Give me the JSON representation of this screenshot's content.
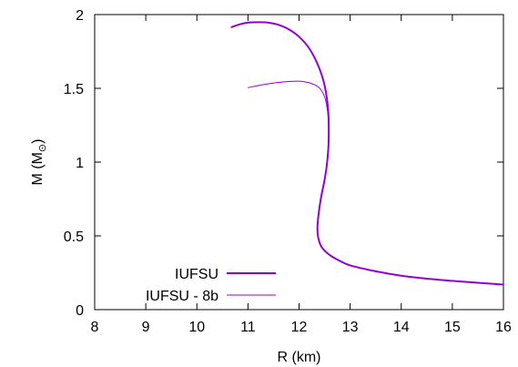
{
  "chart_data": {
    "type": "line",
    "title": "",
    "xlabel": "R (km)",
    "ylabel": "M (M",
    "ylabel_symbol": "⊙",
    "ylabel_close": ")",
    "xlim": [
      8,
      16
    ],
    "ylim": [
      0,
      2
    ],
    "xticks": [
      8,
      9,
      10,
      11,
      12,
      13,
      14,
      15,
      16
    ],
    "xtick_labels": [
      "8",
      "9",
      "10",
      "11",
      "12",
      "13",
      "14",
      "15",
      "16"
    ],
    "yticks": [
      0,
      0.5,
      1,
      1.5,
      2
    ],
    "ytick_labels": [
      "0",
      "0.5",
      "1",
      "1.5",
      "2"
    ],
    "grid": false,
    "legend_position": "bottom-left",
    "series": [
      {
        "name": "IUFSU",
        "color": "#9400d3",
        "style": "thick",
        "points": [
          [
            10.68,
            1.915
          ],
          [
            10.85,
            1.935
          ],
          [
            11.0,
            1.945
          ],
          [
            11.2,
            1.948
          ],
          [
            11.4,
            1.945
          ],
          [
            11.6,
            1.93
          ],
          [
            11.8,
            1.9
          ],
          [
            12.0,
            1.85
          ],
          [
            12.2,
            1.77
          ],
          [
            12.38,
            1.65
          ],
          [
            12.5,
            1.52
          ],
          [
            12.57,
            1.35
          ],
          [
            12.58,
            1.15
          ],
          [
            12.55,
            1.0
          ],
          [
            12.5,
            0.88
          ],
          [
            12.43,
            0.76
          ],
          [
            12.38,
            0.64
          ],
          [
            12.36,
            0.55
          ],
          [
            12.38,
            0.48
          ],
          [
            12.45,
            0.42
          ],
          [
            12.6,
            0.37
          ],
          [
            12.8,
            0.33
          ],
          [
            13.0,
            0.3
          ],
          [
            13.5,
            0.26
          ],
          [
            14.0,
            0.23
          ],
          [
            14.5,
            0.21
          ],
          [
            15.0,
            0.195
          ],
          [
            15.5,
            0.182
          ],
          [
            16.0,
            0.17
          ]
        ]
      },
      {
        "name": "IUFSU - 8b",
        "color": "#9400d3",
        "style": "thin",
        "points": [
          [
            11.0,
            1.505
          ],
          [
            11.3,
            1.525
          ],
          [
            11.6,
            1.54
          ],
          [
            11.9,
            1.548
          ],
          [
            12.1,
            1.545
          ],
          [
            12.3,
            1.525
          ],
          [
            12.43,
            1.49
          ],
          [
            12.52,
            1.42
          ],
          [
            12.57,
            1.3
          ],
          [
            12.58,
            1.15
          ],
          [
            12.55,
            1.0
          ],
          [
            12.5,
            0.88
          ],
          [
            12.43,
            0.76
          ],
          [
            12.38,
            0.64
          ],
          [
            12.36,
            0.55
          ],
          [
            12.38,
            0.48
          ],
          [
            12.45,
            0.42
          ],
          [
            12.6,
            0.37
          ],
          [
            12.8,
            0.33
          ],
          [
            13.0,
            0.3
          ],
          [
            13.5,
            0.26
          ],
          [
            14.0,
            0.23
          ],
          [
            14.5,
            0.21
          ],
          [
            15.0,
            0.195
          ],
          [
            15.5,
            0.182
          ],
          [
            16.0,
            0.17
          ]
        ]
      }
    ]
  }
}
